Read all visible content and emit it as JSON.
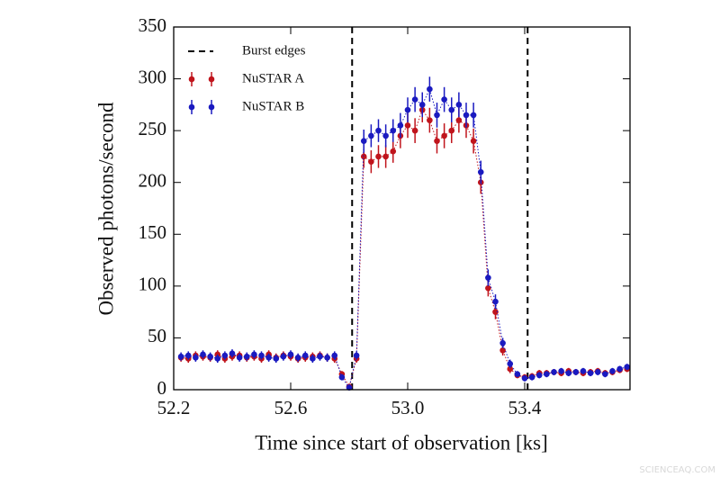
{
  "chart_data": {
    "type": "scatter",
    "x_label": "Time since start of observation [ks]",
    "y_label": "Observed photons/second",
    "xlim": [
      52.2,
      53.76
    ],
    "ylim": [
      0,
      350
    ],
    "xticks": [
      52.2,
      52.6,
      {
        "value": 53,
        "label": "53.0"
      },
      53.4
    ],
    "yticks": [
      0,
      50,
      100,
      150,
      200,
      250,
      300,
      350
    ],
    "legend": "upper left",
    "vlines": {
      "name": "Burst edges",
      "color": "#000000",
      "values": [
        52.81,
        53.41
      ]
    },
    "x": [
      52.225,
      52.25,
      52.275,
      52.3,
      52.325,
      52.35,
      52.375,
      52.4,
      52.425,
      52.45,
      52.475,
      52.5,
      52.525,
      52.55,
      52.575,
      52.6,
      52.625,
      52.65,
      52.675,
      52.7,
      52.725,
      52.75,
      52.775,
      52.8,
      52.825,
      52.85,
      52.875,
      52.9,
      52.925,
      52.95,
      52.975,
      53,
      53.025,
      53.05,
      53.075,
      53.1,
      53.125,
      53.15,
      53.175,
      53.2,
      53.225,
      53.25,
      53.275,
      53.3,
      53.325,
      53.35,
      53.375,
      53.4,
      53.425,
      53.45,
      53.475,
      53.5,
      53.525,
      53.55,
      53.575,
      53.6,
      53.625,
      53.65,
      53.675,
      53.7,
      53.725,
      53.75
    ],
    "series": [
      {
        "name": "NuSTAR A",
        "color": "#c0141c",
        "values": [
          31,
          30,
          33,
          32,
          31,
          34,
          30,
          32,
          33,
          31,
          32,
          30,
          34,
          31,
          33,
          32,
          30,
          31,
          32,
          33,
          31,
          30,
          15,
          3,
          30,
          225,
          220,
          225,
          225,
          230,
          245,
          255,
          250,
          270,
          260,
          240,
          245,
          250,
          260,
          255,
          240,
          200,
          98,
          75,
          38,
          20,
          14,
          12,
          13,
          16,
          16,
          17,
          16,
          18,
          17,
          16,
          17,
          18,
          16,
          17,
          19,
          20
        ],
        "errors": [
          4,
          4,
          4,
          4,
          4,
          4,
          4,
          4,
          4,
          4,
          4,
          4,
          4,
          4,
          4,
          4,
          4,
          4,
          4,
          4,
          4,
          4,
          3,
          2,
          4,
          11,
          11,
          11,
          11,
          11,
          12,
          12,
          12,
          12,
          12,
          12,
          12,
          12,
          12,
          12,
          12,
          11,
          8,
          7,
          5,
          4,
          3,
          3,
          3,
          3,
          3,
          3,
          3,
          3,
          3,
          3,
          3,
          3,
          3,
          3,
          3,
          3
        ]
      },
      {
        "name": "NuSTAR B",
        "color": "#1a1ac0",
        "values": [
          32,
          33,
          31,
          34,
          32,
          30,
          33,
          35,
          31,
          32,
          34,
          33,
          31,
          30,
          32,
          34,
          31,
          33,
          30,
          32,
          31,
          33,
          12,
          2,
          33,
          240,
          245,
          250,
          245,
          250,
          255,
          270,
          280,
          275,
          290,
          265,
          280,
          270,
          275,
          265,
          265,
          210,
          108,
          85,
          45,
          25,
          15,
          11,
          12,
          14,
          15,
          17,
          18,
          16,
          17,
          18,
          16,
          17,
          15,
          18,
          20,
          22
        ],
        "errors": [
          4,
          4,
          4,
          4,
          4,
          4,
          4,
          4,
          4,
          4,
          4,
          4,
          4,
          4,
          4,
          4,
          4,
          4,
          4,
          4,
          4,
          4,
          3,
          2,
          4,
          11,
          11,
          11,
          11,
          11,
          12,
          12,
          12,
          12,
          12,
          12,
          12,
          12,
          12,
          12,
          12,
          11,
          8,
          7,
          5,
          4,
          3,
          3,
          3,
          3,
          3,
          3,
          3,
          3,
          3,
          3,
          3,
          3,
          3,
          3,
          3,
          3
        ]
      }
    ],
    "watermark": "SCIENCEAQ.COM"
  }
}
